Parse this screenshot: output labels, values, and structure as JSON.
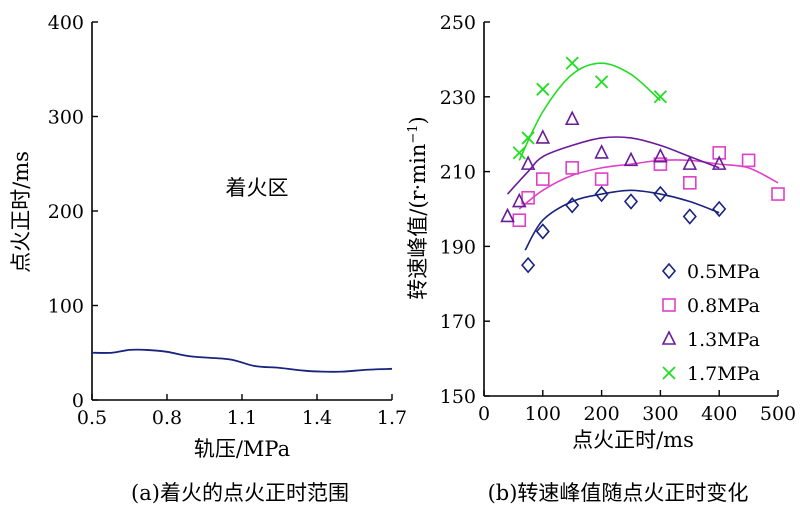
{
  "chart_data": [
    {
      "type": "line",
      "caption": "(a)着火的点火正时范围",
      "xlabel": "轨压/MPa",
      "ylabel": "点火正时/ms",
      "xlim": [
        0.5,
        1.7
      ],
      "ylim": [
        0,
        400
      ],
      "xticks": [
        "0.5",
        "0.8",
        "1.1",
        "1.4",
        "1.7"
      ],
      "yticks": [
        "0",
        "100",
        "200",
        "300",
        "400"
      ],
      "xtick_values": [
        0.5,
        0.8,
        1.1,
        1.4,
        1.7
      ],
      "ytick_values": [
        0,
        100,
        200,
        300,
        400
      ],
      "annotation": {
        "text": "着火区",
        "x": 1.0,
        "y": 230
      },
      "color": "#1a237e",
      "series": [
        {
          "x": [
            0.5,
            0.58,
            0.65,
            0.72,
            0.8,
            0.9,
            1.05,
            1.15,
            1.25,
            1.35,
            1.42,
            1.5,
            1.6,
            1.7
          ],
          "y": [
            50,
            50,
            53,
            53,
            51,
            46,
            43,
            36,
            34,
            31,
            30,
            30,
            32,
            33
          ]
        }
      ]
    },
    {
      "type": "scatter",
      "caption": "(b)转速峰值随点火正时变化",
      "xlabel": "点火正时/ms",
      "ylabel": "转速峰值/(r·min",
      "ylabel_sup": "−1",
      "ylabel_close": ")",
      "xlim": [
        0,
        500
      ],
      "ylim": [
        150,
        250
      ],
      "xticks": [
        "0",
        "100",
        "200",
        "300",
        "400",
        "500"
      ],
      "yticks": [
        "150",
        "170",
        "190",
        "210",
        "230",
        "250"
      ],
      "xtick_values": [
        0,
        100,
        200,
        300,
        400,
        500
      ],
      "ytick_values": [
        150,
        170,
        190,
        210,
        230,
        250
      ],
      "legend_position": "bottom-right",
      "series": [
        {
          "name": "0.5MPa",
          "marker": "diamond",
          "color": "#1a237e",
          "points": [
            [
              75,
              185
            ],
            [
              100,
              194
            ],
            [
              150,
              201
            ],
            [
              200,
              204
            ],
            [
              250,
              202
            ],
            [
              300,
              204
            ],
            [
              350,
              198
            ],
            [
              400,
              200
            ]
          ],
          "fit": [
            [
              70,
              189
            ],
            [
              100,
              197
            ],
            [
              150,
              202
            ],
            [
              200,
              204
            ],
            [
              250,
              205
            ],
            [
              300,
              204
            ],
            [
              350,
              202
            ],
            [
              400,
              199
            ]
          ]
        },
        {
          "name": "0.8MPa",
          "marker": "square",
          "color": "#e040c8",
          "points": [
            [
              60,
              197
            ],
            [
              75,
              203
            ],
            [
              100,
              208
            ],
            [
              150,
              211
            ],
            [
              200,
              208
            ],
            [
              300,
              212
            ],
            [
              350,
              207
            ],
            [
              400,
              215
            ],
            [
              450,
              213
            ],
            [
              500,
              204
            ]
          ],
          "fit": [
            [
              60,
              200
            ],
            [
              100,
              205
            ],
            [
              150,
              209
            ],
            [
              200,
              211
            ],
            [
              250,
              212
            ],
            [
              300,
              213
            ],
            [
              350,
              213
            ],
            [
              400,
              212
            ],
            [
              450,
              211
            ],
            [
              500,
              207
            ]
          ]
        },
        {
          "name": "1.3MPa",
          "marker": "triangle",
          "color": "#6a1b9a",
          "points": [
            [
              40,
              198
            ],
            [
              60,
              202
            ],
            [
              75,
              212
            ],
            [
              100,
              219
            ],
            [
              150,
              224
            ],
            [
              200,
              215
            ],
            [
              250,
              213
            ],
            [
              300,
              214
            ],
            [
              350,
              212
            ],
            [
              400,
              212
            ]
          ],
          "fit": [
            [
              40,
              204
            ],
            [
              75,
              210
            ],
            [
              100,
              214
            ],
            [
              150,
              217
            ],
            [
              200,
              219
            ],
            [
              250,
              219
            ],
            [
              300,
              217
            ],
            [
              350,
              214
            ],
            [
              400,
              211
            ]
          ]
        },
        {
          "name": "1.7MPa",
          "marker": "cross",
          "color": "#22dd22",
          "points": [
            [
              60,
              215
            ],
            [
              75,
              219
            ],
            [
              100,
              232
            ],
            [
              150,
              239
            ],
            [
              200,
              234
            ],
            [
              300,
              230
            ]
          ],
          "fit": [
            [
              60,
              213
            ],
            [
              100,
              226
            ],
            [
              150,
              236
            ],
            [
              200,
              239
            ],
            [
              250,
              236
            ],
            [
              300,
              229
            ]
          ]
        }
      ]
    }
  ]
}
